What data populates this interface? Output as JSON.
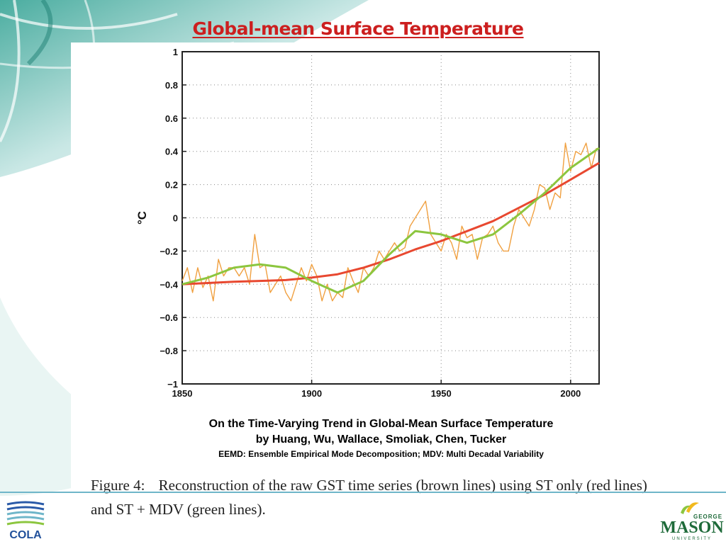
{
  "slide": {
    "title": "Global-mean Surface Temperature"
  },
  "caption": {
    "line1": "On the Time-Varying Trend in Global-Mean Surface Temperature",
    "line2": "by Huang, Wu, Wallace, Smoliak, Chen, Tucker",
    "line3": "EEMD: Ensemble Empirical Mode Decomposition; MDV: Multi Decadal Variability",
    "figure_label": "Figure 4:",
    "figure_text": "Reconstruction of the raw GST time series (brown lines) using ST only (red lines) and ST + MDV (green lines)."
  },
  "logos": {
    "cola": "COLA",
    "gmu_top": "GEORGE",
    "gmu_main": "MASON",
    "gmu_bottom": "UNIVERSITY"
  },
  "chart_data": {
    "type": "line",
    "title": "",
    "xlabel": "",
    "ylabel": "°C",
    "xlim": [
      1850,
      2011
    ],
    "ylim": [
      -1,
      1
    ],
    "x_ticks": [
      1850,
      1900,
      1950,
      2000
    ],
    "y_ticks": [
      -1,
      -0.8,
      -0.6,
      -0.4,
      -0.2,
      0,
      0.2,
      0.4,
      0.6,
      0.8,
      1
    ],
    "y_tick_labels": [
      "−1",
      "−0.8",
      "−0.6",
      "−0.4",
      "−0.2",
      "0",
      "0.2",
      "0.4",
      "0.6",
      "0.8",
      "1"
    ],
    "grid": true,
    "series": [
      {
        "color": "#f0a040",
        "kind": "raw monthly GST",
        "x": [
          1850,
          1852,
          1854,
          1856,
          1858,
          1860,
          1862,
          1864,
          1866,
          1868,
          1870,
          1872,
          1874,
          1876,
          1878,
          1880,
          1882,
          1884,
          1886,
          1888,
          1890,
          1892,
          1894,
          1896,
          1898,
          1900,
          1902,
          1904,
          1906,
          1908,
          1910,
          1912,
          1914,
          1916,
          1918,
          1920,
          1922,
          1924,
          1926,
          1928,
          1930,
          1932,
          1934,
          1936,
          1938,
          1940,
          1942,
          1944,
          1946,
          1948,
          1950,
          1952,
          1954,
          1956,
          1958,
          1960,
          1962,
          1964,
          1966,
          1968,
          1970,
          1972,
          1974,
          1976,
          1978,
          1980,
          1982,
          1984,
          1986,
          1988,
          1990,
          1992,
          1994,
          1996,
          1998,
          2000,
          2002,
          2004,
          2006,
          2008,
          2010
        ],
        "y": [
          -0.38,
          -0.3,
          -0.45,
          -0.3,
          -0.42,
          -0.35,
          -0.5,
          -0.25,
          -0.35,
          -0.3,
          -0.3,
          -0.35,
          -0.3,
          -0.4,
          -0.1,
          -0.3,
          -0.28,
          -0.45,
          -0.4,
          -0.35,
          -0.45,
          -0.5,
          -0.4,
          -0.3,
          -0.38,
          -0.28,
          -0.35,
          -0.5,
          -0.4,
          -0.5,
          -0.45,
          -0.48,
          -0.3,
          -0.38,
          -0.45,
          -0.3,
          -0.35,
          -0.3,
          -0.2,
          -0.25,
          -0.2,
          -0.15,
          -0.2,
          -0.18,
          -0.05,
          0.0,
          0.05,
          0.1,
          -0.1,
          -0.15,
          -0.2,
          -0.1,
          -0.15,
          -0.25,
          -0.05,
          -0.12,
          -0.1,
          -0.25,
          -0.12,
          -0.1,
          -0.05,
          -0.15,
          -0.2,
          -0.2,
          -0.05,
          0.05,
          0.0,
          -0.05,
          0.05,
          0.2,
          0.18,
          0.05,
          0.15,
          0.12,
          0.45,
          0.28,
          0.4,
          0.38,
          0.45,
          0.3,
          0.42
        ]
      },
      {
        "color": "#e84830",
        "kind": "ST only",
        "x": [
          1850,
          1870,
          1890,
          1900,
          1910,
          1920,
          1930,
          1940,
          1950,
          1960,
          1970,
          1980,
          1990,
          2000,
          2011
        ],
        "y": [
          -0.4,
          -0.385,
          -0.375,
          -0.36,
          -0.34,
          -0.3,
          -0.25,
          -0.19,
          -0.14,
          -0.08,
          -0.02,
          0.06,
          0.14,
          0.23,
          0.33
        ]
      },
      {
        "color": "#8cc63f",
        "kind": "ST + MDV",
        "x": [
          1850,
          1860,
          1870,
          1880,
          1890,
          1900,
          1910,
          1920,
          1930,
          1940,
          1950,
          1960,
          1970,
          1980,
          1990,
          2000,
          2011
        ],
        "y": [
          -0.4,
          -0.36,
          -0.3,
          -0.28,
          -0.3,
          -0.38,
          -0.45,
          -0.38,
          -0.22,
          -0.08,
          -0.1,
          -0.15,
          -0.1,
          0.02,
          0.15,
          0.3,
          0.42
        ]
      }
    ]
  }
}
